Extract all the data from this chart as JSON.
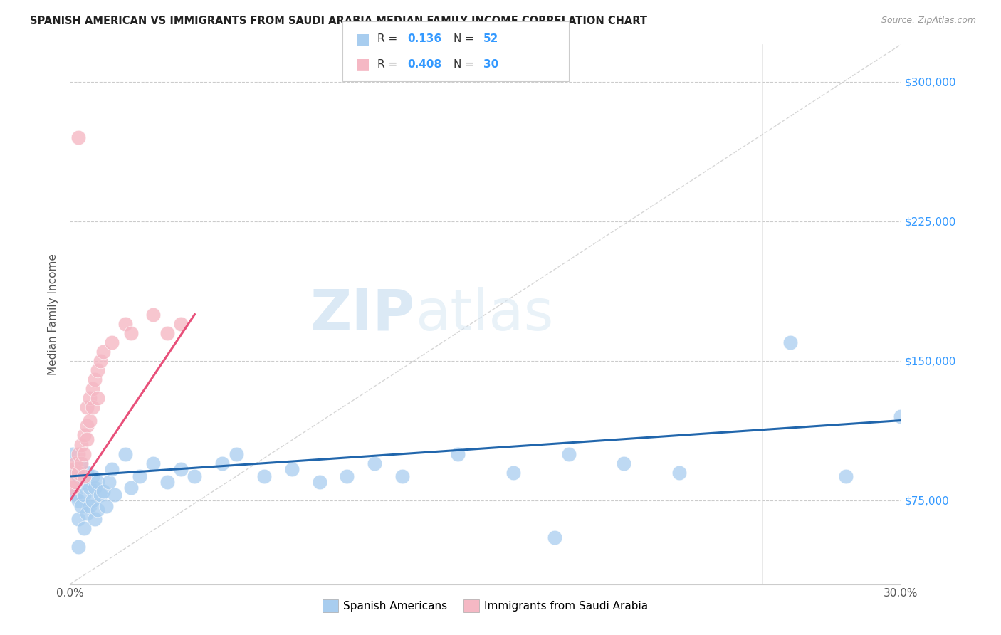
{
  "title": "SPANISH AMERICAN VS IMMIGRANTS FROM SAUDI ARABIA MEDIAN FAMILY INCOME CORRELATION CHART",
  "source": "Source: ZipAtlas.com",
  "ylabel": "Median Family Income",
  "xlim": [
    0.0,
    0.3
  ],
  "ylim": [
    30000,
    320000
  ],
  "yticks": [
    75000,
    150000,
    225000,
    300000
  ],
  "ytick_labels": [
    "$75,000",
    "$150,000",
    "$225,000",
    "$300,000"
  ],
  "xticks": [
    0.0,
    0.05,
    0.1,
    0.15,
    0.2,
    0.25,
    0.3
  ],
  "blue_label": "Spanish Americans",
  "pink_label": "Immigrants from Saudi Arabia",
  "blue_color": "#A8CDEF",
  "pink_color": "#F5B8C4",
  "blue_line_color": "#2166AC",
  "pink_line_color": "#E8507A",
  "diag_line_color": "#CCCCCC",
  "watermark_zip": "ZIP",
  "watermark_atlas": "atlas",
  "blue_r": "0.136",
  "blue_n": "52",
  "pink_r": "0.408",
  "pink_n": "30",
  "accent_color": "#3399FF",
  "blue_scatter_x": [
    0.001,
    0.002,
    0.002,
    0.003,
    0.003,
    0.003,
    0.004,
    0.004,
    0.005,
    0.005,
    0.005,
    0.006,
    0.006,
    0.007,
    0.007,
    0.008,
    0.008,
    0.009,
    0.009,
    0.01,
    0.01,
    0.011,
    0.012,
    0.013,
    0.014,
    0.015,
    0.016,
    0.02,
    0.022,
    0.025,
    0.03,
    0.035,
    0.04,
    0.045,
    0.055,
    0.06,
    0.07,
    0.08,
    0.09,
    0.1,
    0.11,
    0.12,
    0.14,
    0.16,
    0.18,
    0.2,
    0.22,
    0.26,
    0.28,
    0.3,
    0.003,
    0.175
  ],
  "blue_scatter_y": [
    100000,
    92000,
    78000,
    88000,
    75000,
    65000,
    95000,
    72000,
    85000,
    78000,
    60000,
    90000,
    68000,
    82000,
    72000,
    88000,
    75000,
    82000,
    65000,
    85000,
    70000,
    78000,
    80000,
    72000,
    85000,
    92000,
    78000,
    100000,
    82000,
    88000,
    95000,
    85000,
    92000,
    88000,
    95000,
    100000,
    88000,
    92000,
    85000,
    88000,
    95000,
    88000,
    100000,
    90000,
    100000,
    95000,
    90000,
    160000,
    88000,
    120000,
    50000,
    55000
  ],
  "pink_scatter_x": [
    0.001,
    0.001,
    0.002,
    0.002,
    0.003,
    0.003,
    0.004,
    0.004,
    0.005,
    0.005,
    0.005,
    0.006,
    0.006,
    0.006,
    0.007,
    0.007,
    0.008,
    0.008,
    0.009,
    0.01,
    0.01,
    0.011,
    0.012,
    0.015,
    0.02,
    0.022,
    0.03,
    0.035,
    0.04,
    0.003
  ],
  "pink_scatter_y": [
    92000,
    82000,
    95000,
    85000,
    100000,
    90000,
    105000,
    95000,
    110000,
    100000,
    88000,
    115000,
    125000,
    108000,
    130000,
    118000,
    135000,
    125000,
    140000,
    145000,
    130000,
    150000,
    155000,
    160000,
    170000,
    165000,
    175000,
    165000,
    170000,
    270000
  ],
  "blue_trendline_x": [
    0.0,
    0.3
  ],
  "blue_trendline_y": [
    88000,
    118000
  ],
  "pink_trendline_x": [
    0.0,
    0.045
  ],
  "pink_trendline_y": [
    75000,
    175000
  ]
}
